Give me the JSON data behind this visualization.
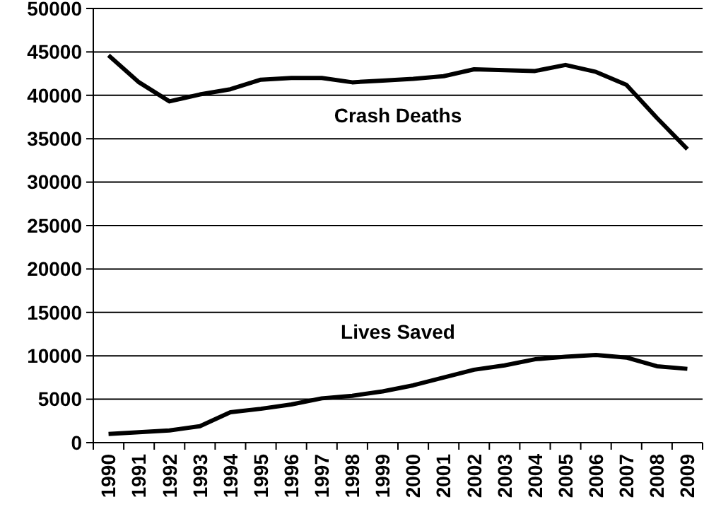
{
  "chart_data": {
    "type": "line",
    "categories": [
      "1990",
      "1991",
      "1992",
      "1993",
      "1994",
      "1995",
      "1996",
      "1997",
      "1998",
      "1999",
      "2000",
      "2001",
      "2002",
      "2003",
      "2004",
      "2005",
      "2006",
      "2007",
      "2008",
      "2009"
    ],
    "series": [
      {
        "name": "Crash Deaths",
        "color": "#000000",
        "values": [
          44600,
          41500,
          39300,
          40100,
          40700,
          41800,
          42000,
          42000,
          41500,
          41700,
          41900,
          42200,
          43000,
          42900,
          42800,
          43500,
          42700,
          41200,
          37400,
          33800
        ]
      },
      {
        "name": "Lives Saved",
        "color": "#000000",
        "values": [
          1000,
          1200,
          1400,
          1900,
          3500,
          3900,
          4400,
          5100,
          5400,
          5900,
          6600,
          7500,
          8400,
          8900,
          9600,
          9900,
          10100,
          9800,
          8800,
          8500
        ]
      }
    ],
    "ylim": [
      0,
      50000
    ],
    "yticks": [
      0,
      5000,
      10000,
      15000,
      20000,
      25000,
      30000,
      35000,
      40000,
      45000,
      50000
    ],
    "grid": "y",
    "marker": "none",
    "line_style": "solid"
  }
}
